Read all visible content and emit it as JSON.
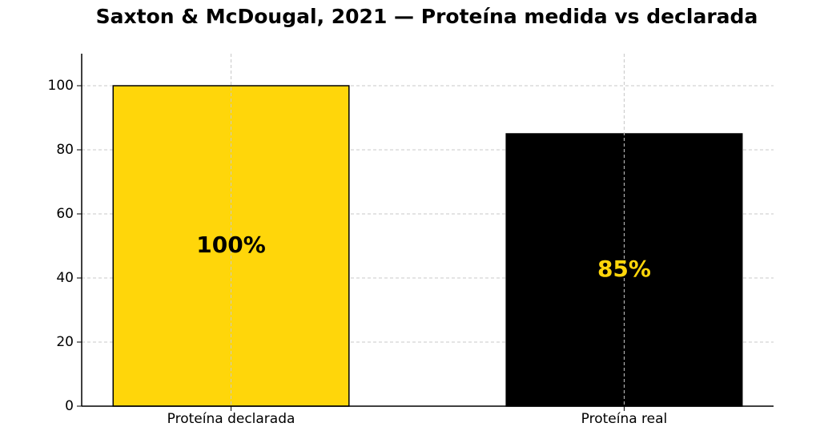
{
  "chart_data": {
    "type": "bar",
    "title": "Saxton & McDougal, 2021 — Proteína medida vs declarada",
    "categories": [
      "Proteína declarada",
      "Proteína real"
    ],
    "values": [
      100,
      85
    ],
    "value_labels": [
      "100%",
      "85%"
    ],
    "colors": [
      "#ffd60a",
      "#000000"
    ],
    "value_label_colors": [
      "#000000",
      "#ffd60a"
    ],
    "ylim": [
      0,
      110
    ],
    "yticks": [
      0,
      20,
      40,
      60,
      80,
      100
    ],
    "grid": true
  }
}
